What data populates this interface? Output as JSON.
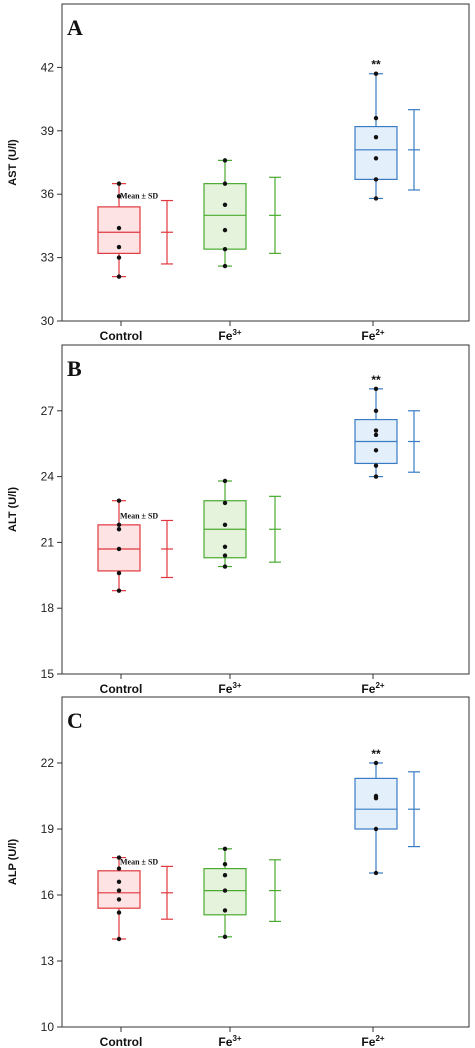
{
  "colors": {
    "Control": "#e0383e",
    "Fe3+": "#4aaa2f",
    "Fe2+": "#3a7cc4",
    "Control_fill": "#fde3e3",
    "Fe3+_fill": "#e6f3dc",
    "Fe2+_fill": "#e3effa"
  },
  "chart_data": [
    {
      "type": "box",
      "panel_label": "A",
      "ylabel": "AST (U/l)",
      "ylim": [
        30,
        45
      ],
      "yticks": [
        "30",
        "33",
        "36",
        "39",
        "42"
      ],
      "ytick_values": [
        30,
        33,
        36,
        39,
        42
      ],
      "categories": [
        {
          "name": "Control",
          "base": "Control",
          "sup": ""
        },
        {
          "name": "Fe3+",
          "base": "Fe",
          "sup": "3+"
        },
        {
          "name": "Fe2+",
          "base": "Fe",
          "sup": "2+"
        }
      ],
      "boxes": [
        {
          "group": "Control",
          "min": 32.1,
          "q1": 33.2,
          "median": 34.2,
          "q3": 35.4,
          "max": 36.5,
          "points": [
            32.1,
            33.0,
            33.5,
            34.4,
            35.9,
            36.5
          ]
        },
        {
          "group": "Fe3+",
          "min": 32.6,
          "q1": 33.4,
          "median": 35.0,
          "q3": 36.5,
          "max": 37.6,
          "points": [
            32.6,
            33.4,
            34.3,
            35.5,
            36.5,
            37.6
          ]
        },
        {
          "group": "Fe2+",
          "min": 35.8,
          "q1": 36.7,
          "median": 38.1,
          "q3": 39.2,
          "max": 41.7,
          "points": [
            35.8,
            36.7,
            37.7,
            38.7,
            39.6,
            41.7
          ]
        }
      ],
      "mean_sd": [
        {
          "group": "Control",
          "mean": 34.2,
          "sd": 1.5
        },
        {
          "group": "Fe3+",
          "mean": 35.0,
          "sd": 1.8
        },
        {
          "group": "Fe2+",
          "mean": 38.1,
          "sd": 1.9
        }
      ],
      "mean_sd_label": "Mean ± SD",
      "significance": "**"
    },
    {
      "type": "box",
      "panel_label": "B",
      "ylabel": "ALT (U/l)",
      "ylim": [
        15,
        30
      ],
      "yticks": [
        "15",
        "18",
        "21",
        "24",
        "27"
      ],
      "ytick_values": [
        15,
        18,
        21,
        24,
        27
      ],
      "categories": [
        {
          "name": "Control",
          "base": "Control",
          "sup": ""
        },
        {
          "name": "Fe3+",
          "base": "Fe",
          "sup": "3+"
        },
        {
          "name": "Fe2+",
          "base": "Fe",
          "sup": "2+"
        }
      ],
      "boxes": [
        {
          "group": "Control",
          "min": 18.8,
          "q1": 19.7,
          "median": 20.7,
          "q3": 21.8,
          "max": 22.9,
          "points": [
            18.8,
            19.6,
            20.7,
            21.6,
            21.8,
            22.9
          ]
        },
        {
          "group": "Fe3+",
          "min": 19.9,
          "q1": 20.3,
          "median": 21.6,
          "q3": 22.9,
          "max": 23.8,
          "points": [
            19.9,
            20.4,
            20.8,
            21.8,
            22.8,
            23.8
          ]
        },
        {
          "group": "Fe2+",
          "min": 24.0,
          "q1": 24.6,
          "median": 25.6,
          "q3": 26.6,
          "max": 28.0,
          "points": [
            24.0,
            24.5,
            25.2,
            25.9,
            26.1,
            27.0,
            28.0
          ]
        }
      ],
      "mean_sd": [
        {
          "group": "Control",
          "mean": 20.7,
          "sd": 1.3
        },
        {
          "group": "Fe3+",
          "mean": 21.6,
          "sd": 1.5
        },
        {
          "group": "Fe2+",
          "mean": 25.6,
          "sd": 1.4
        }
      ],
      "mean_sd_label": "Mean ± SD",
      "significance": "**"
    },
    {
      "type": "box",
      "panel_label": "C",
      "ylabel": "ALP (U/l)",
      "ylim": [
        10,
        25
      ],
      "yticks": [
        "10",
        "13",
        "16",
        "19",
        "22"
      ],
      "ytick_values": [
        10,
        13,
        16,
        19,
        22
      ],
      "categories": [
        {
          "name": "Control",
          "base": "Control",
          "sup": ""
        },
        {
          "name": "Fe3+",
          "base": "Fe",
          "sup": "3+"
        },
        {
          "name": "Fe2+",
          "base": "Fe",
          "sup": "2+"
        }
      ],
      "boxes": [
        {
          "group": "Control",
          "min": 14.0,
          "q1": 15.4,
          "median": 16.1,
          "q3": 17.1,
          "max": 17.7,
          "points": [
            14.0,
            15.2,
            15.8,
            16.2,
            16.6,
            17.2,
            17.7
          ]
        },
        {
          "group": "Fe3+",
          "min": 14.1,
          "q1": 15.1,
          "median": 16.2,
          "q3": 17.2,
          "max": 18.1,
          "points": [
            14.1,
            15.3,
            16.2,
            16.9,
            17.4,
            18.1
          ]
        },
        {
          "group": "Fe2+",
          "min": 17.0,
          "q1": 19.0,
          "median": 19.9,
          "q3": 21.3,
          "max": 22.0,
          "points": [
            17.0,
            19.0,
            20.4,
            20.5,
            22.0
          ]
        }
      ],
      "mean_sd": [
        {
          "group": "Control",
          "mean": 16.1,
          "sd": 1.2
        },
        {
          "group": "Fe3+",
          "mean": 16.2,
          "sd": 1.4
        },
        {
          "group": "Fe2+",
          "mean": 19.9,
          "sd": 1.7
        }
      ],
      "mean_sd_label": "Mean ± SD",
      "significance": "**"
    }
  ]
}
